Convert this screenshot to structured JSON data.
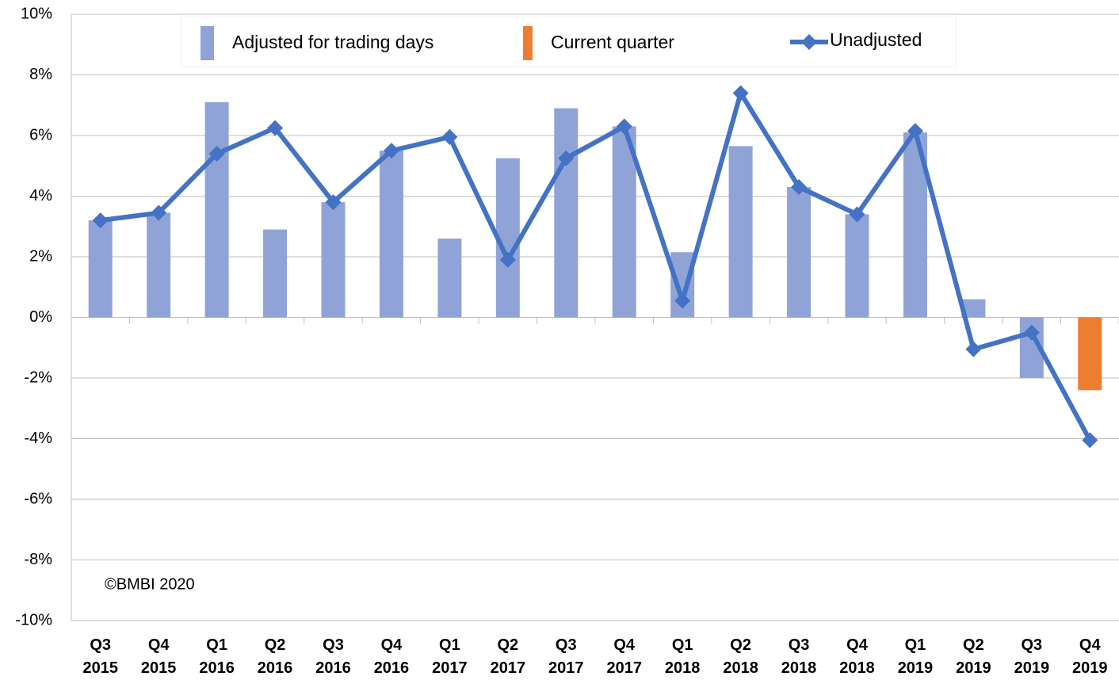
{
  "chart_data": {
    "type": "bar_line",
    "categories": [
      "Q3 2015",
      "Q4 2015",
      "Q1 2016",
      "Q2 2016",
      "Q3 2016",
      "Q4 2016",
      "Q1 2017",
      "Q2 2017",
      "Q3 2017",
      "Q4 2017",
      "Q1 2018",
      "Q2 2018",
      "Q3 2018",
      "Q4 2018",
      "Q1 2019",
      "Q2 2019",
      "Q3 2019",
      "Q4 2019"
    ],
    "series": [
      {
        "name": "Adjusted for trading days",
        "type": "bar",
        "color": "#8fa3d6",
        "values": [
          3.2,
          3.45,
          7.1,
          2.9,
          3.8,
          5.5,
          2.6,
          5.25,
          6.9,
          6.3,
          2.15,
          5.65,
          4.3,
          3.4,
          6.1,
          0.6,
          -2.0,
          null
        ]
      },
      {
        "name": "Current quarter",
        "type": "bar",
        "color": "#ed7d31",
        "values": [
          null,
          null,
          null,
          null,
          null,
          null,
          null,
          null,
          null,
          null,
          null,
          null,
          null,
          null,
          null,
          null,
          null,
          -2.4
        ]
      },
      {
        "name": "Unadjusted",
        "type": "line",
        "color": "#4472c4",
        "values": [
          3.2,
          3.45,
          5.4,
          6.25,
          3.8,
          5.5,
          5.95,
          1.9,
          5.25,
          6.3,
          0.55,
          7.4,
          4.3,
          3.4,
          6.15,
          -1.05,
          -0.5,
          -4.05
        ]
      }
    ],
    "ylim": [
      -10,
      10
    ],
    "yticks": [
      {
        "value": -10,
        "label": "-10%"
      },
      {
        "value": -8,
        "label": "-8%"
      },
      {
        "value": -6,
        "label": "-6%"
      },
      {
        "value": -4,
        "label": "-4%"
      },
      {
        "value": -2,
        "label": "-2%"
      },
      {
        "value": 0,
        "label": "0%"
      },
      {
        "value": 2,
        "label": "2%"
      },
      {
        "value": 4,
        "label": "4%"
      },
      {
        "value": 6,
        "label": "6%"
      },
      {
        "value": 8,
        "label": "8%"
      },
      {
        "value": 10,
        "label": "10%"
      }
    ],
    "grid": true,
    "annotation": "©BMBI 2020"
  }
}
